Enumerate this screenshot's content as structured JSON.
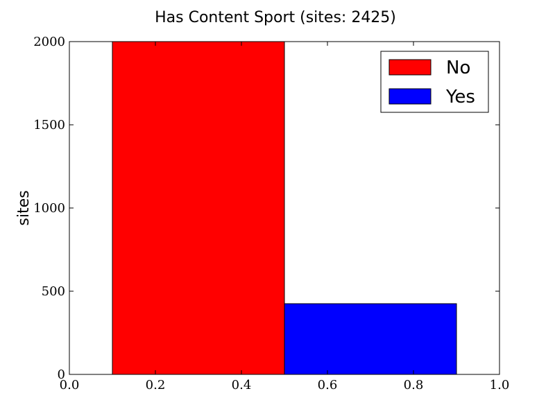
{
  "chart_data": {
    "type": "bar",
    "title": "Has Content Sport (sites: 2425)",
    "ylabel": "sites",
    "xlim": [
      0.0,
      1.0
    ],
    "ylim": [
      0,
      2000
    ],
    "xticks": [
      "0.0",
      "0.2",
      "0.4",
      "0.6",
      "0.8",
      "1.0"
    ],
    "yticks": [
      "0",
      "500",
      "1000",
      "1500",
      "2000"
    ],
    "bars": [
      {
        "name": "No",
        "x0": 0.1,
        "x1": 0.5,
        "value": 2000,
        "color": "#ff0000"
      },
      {
        "name": "Yes",
        "x0": 0.5,
        "x1": 0.9,
        "value": 425,
        "color": "#0000ff"
      }
    ],
    "legend": {
      "placement": "top-right",
      "entries": [
        "No",
        "Yes"
      ]
    },
    "grid": false
  }
}
